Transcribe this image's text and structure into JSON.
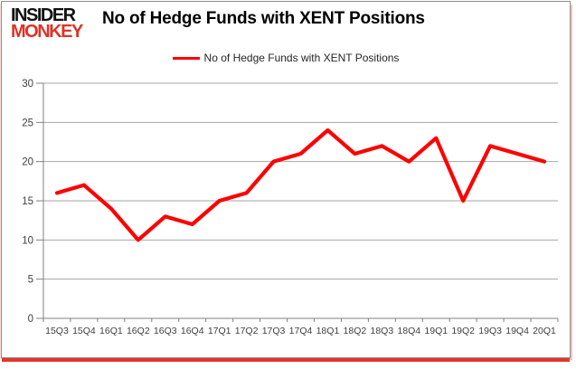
{
  "header": {
    "logo_line1": "INSIDER",
    "logo_line2": "MONKEY",
    "title": "No of Hedge Funds with XENT Positions"
  },
  "legend": {
    "label": "No of Hedge Funds with XENT Positions",
    "color": "#ff0000"
  },
  "chart_data": {
    "type": "line",
    "title": "No of Hedge Funds with XENT Positions",
    "xlabel": "",
    "ylabel": "",
    "categories": [
      "15Q3",
      "15Q4",
      "16Q1",
      "16Q2",
      "16Q3",
      "16Q4",
      "17Q1",
      "17Q2",
      "17Q3",
      "17Q4",
      "18Q1",
      "18Q2",
      "18Q3",
      "18Q4",
      "19Q1",
      "19Q2",
      "19Q3",
      "19Q4",
      "20Q1"
    ],
    "series": [
      {
        "name": "No of Hedge Funds with XENT Positions",
        "color": "#ff0000",
        "values": [
          16,
          17,
          14,
          10,
          13,
          12,
          15,
          16,
          20,
          21,
          24,
          21,
          22,
          20,
          23,
          15,
          22,
          21,
          20
        ]
      }
    ],
    "ylim": [
      0,
      30
    ],
    "ytick_interval": 5,
    "yticks": [
      0,
      5,
      10,
      15,
      20,
      25,
      30
    ],
    "grid": "horizontal",
    "legend_position": "top",
    "grid_color": "#a6a6a6",
    "axis_color": "#808080",
    "label_color": "#3f3f3f"
  }
}
